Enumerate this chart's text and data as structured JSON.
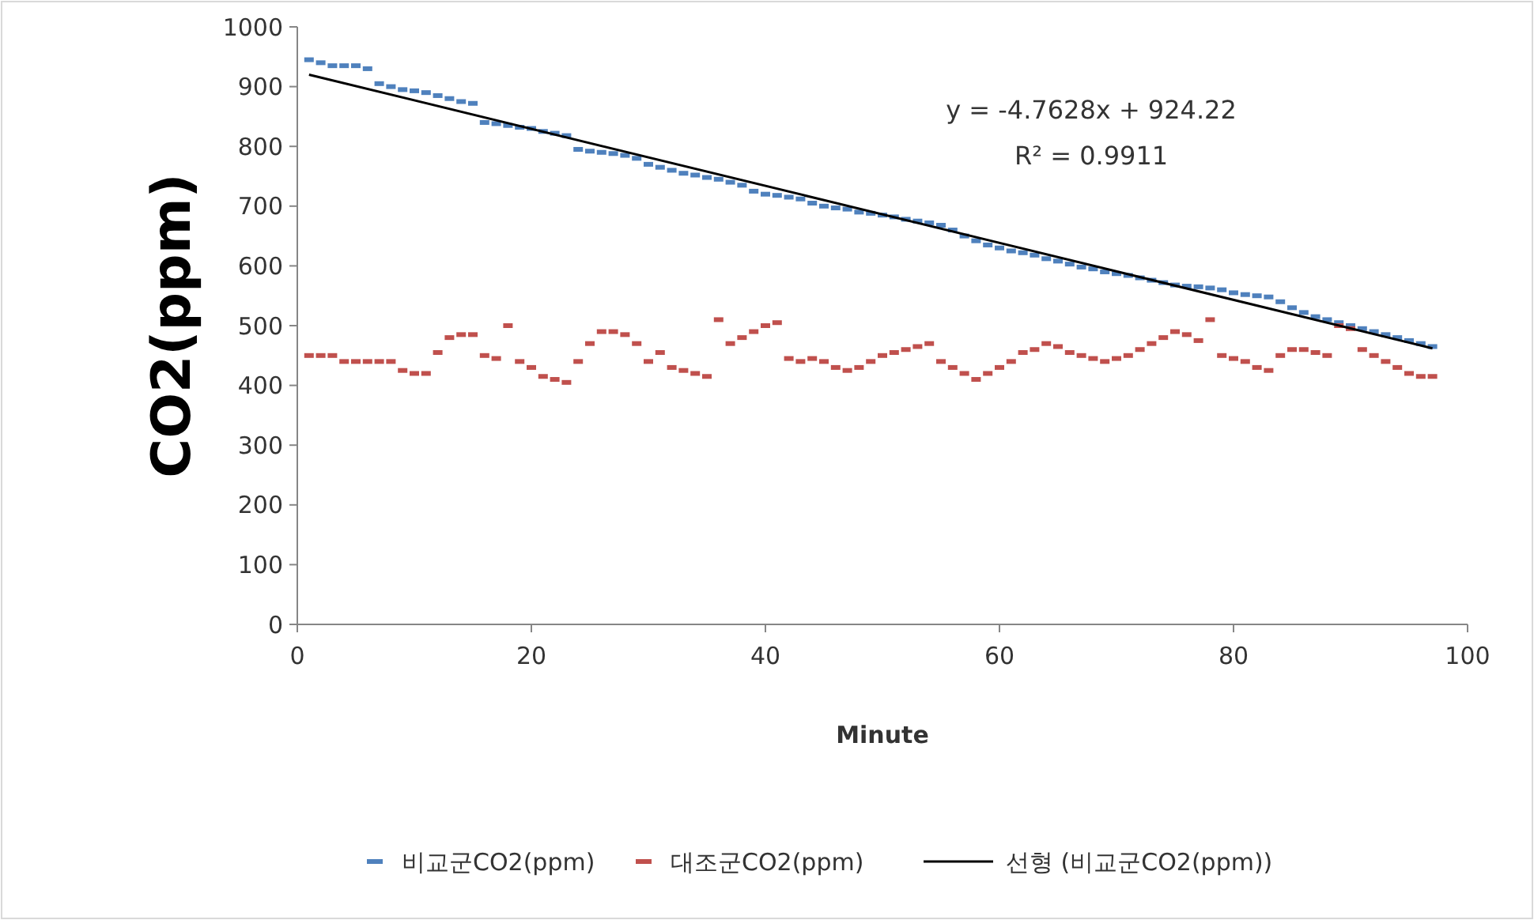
{
  "chart_data": {
    "type": "scatter",
    "xlabel": "Minute",
    "ylabel": "CO2(ppm)",
    "xlim": [
      0,
      100
    ],
    "xticks": [
      0,
      20,
      40,
      60,
      80,
      100
    ],
    "ylim": [
      0,
      1000
    ],
    "yticks": [
      0,
      100,
      200,
      300,
      400,
      500,
      600,
      700,
      800,
      900,
      1000
    ],
    "grid": false,
    "legend": "bottom",
    "annotations": [
      "y = -4.7628x + 924.22",
      "R² = 0.9911"
    ],
    "series": [
      {
        "name": "비교군CO2(ppm)",
        "color": "#4f81bd",
        "x": [
          1,
          2,
          3,
          4,
          5,
          6,
          7,
          8,
          9,
          10,
          11,
          12,
          13,
          14,
          15,
          16,
          17,
          18,
          19,
          20,
          21,
          22,
          23,
          24,
          25,
          26,
          27,
          28,
          29,
          30,
          31,
          32,
          33,
          34,
          35,
          36,
          37,
          38,
          39,
          40,
          41,
          42,
          43,
          44,
          45,
          46,
          47,
          48,
          49,
          50,
          51,
          52,
          53,
          54,
          55,
          56,
          57,
          58,
          59,
          60,
          61,
          62,
          63,
          64,
          65,
          66,
          67,
          68,
          69,
          70,
          71,
          72,
          73,
          74,
          75,
          76,
          77,
          78,
          79,
          80,
          81,
          82,
          83,
          84,
          85,
          86,
          87,
          88,
          89,
          90,
          91,
          92,
          93,
          94,
          95,
          96,
          97
        ],
        "values": [
          945,
          940,
          935,
          935,
          935,
          930,
          905,
          900,
          895,
          893,
          890,
          885,
          880,
          875,
          872,
          840,
          838,
          835,
          832,
          830,
          825,
          822,
          818,
          795,
          792,
          790,
          788,
          785,
          780,
          770,
          765,
          760,
          755,
          752,
          748,
          745,
          740,
          735,
          725,
          720,
          718,
          715,
          712,
          705,
          700,
          697,
          695,
          690,
          688,
          685,
          682,
          678,
          675,
          672,
          668,
          660,
          650,
          642,
          635,
          630,
          625,
          622,
          618,
          612,
          608,
          603,
          598,
          595,
          590,
          587,
          584,
          580,
          576,
          572,
          568,
          566,
          565,
          563,
          560,
          555,
          552,
          550,
          548,
          540,
          530,
          522,
          515,
          510,
          505,
          500,
          495,
          490,
          485,
          480,
          475,
          470,
          465
        ]
      },
      {
        "name": "대조군CO2(ppm)",
        "color": "#c0504d",
        "x": [
          1,
          2,
          3,
          4,
          5,
          6,
          7,
          8,
          9,
          10,
          11,
          12,
          13,
          14,
          15,
          16,
          17,
          18,
          19,
          20,
          21,
          22,
          23,
          24,
          25,
          26,
          27,
          28,
          29,
          30,
          31,
          32,
          33,
          34,
          35,
          36,
          37,
          38,
          39,
          40,
          41,
          42,
          43,
          44,
          45,
          46,
          47,
          48,
          49,
          50,
          51,
          52,
          53,
          54,
          55,
          56,
          57,
          58,
          59,
          60,
          61,
          62,
          63,
          64,
          65,
          66,
          67,
          68,
          69,
          70,
          71,
          72,
          73,
          74,
          75,
          76,
          77,
          78,
          79,
          80,
          81,
          82,
          83,
          84,
          85,
          86,
          87,
          88,
          89,
          90,
          91,
          92,
          93,
          94,
          95,
          96,
          97
        ],
        "values": [
          450,
          450,
          450,
          440,
          440,
          440,
          440,
          440,
          425,
          420,
          420,
          455,
          480,
          485,
          485,
          450,
          445,
          500,
          440,
          430,
          415,
          410,
          405,
          440,
          470,
          490,
          490,
          485,
          470,
          440,
          455,
          430,
          425,
          420,
          415,
          510,
          470,
          480,
          490,
          500,
          505,
          445,
          440,
          445,
          440,
          430,
          425,
          430,
          440,
          450,
          455,
          460,
          465,
          470,
          440,
          430,
          420,
          410,
          420,
          430,
          440,
          455,
          460,
          470,
          465,
          455,
          450,
          445,
          440,
          445,
          450,
          460,
          470,
          480,
          490,
          485,
          475,
          510,
          450,
          445,
          440,
          430,
          425,
          450,
          460,
          460,
          455,
          450,
          500,
          495,
          460,
          450,
          440,
          430,
          420,
          415,
          415
        ]
      },
      {
        "name": "선형 (비교군CO2(ppm))",
        "type": "line",
        "color": "#000000",
        "x": [
          1,
          97
        ],
        "values": [
          920,
          462
        ]
      }
    ]
  }
}
